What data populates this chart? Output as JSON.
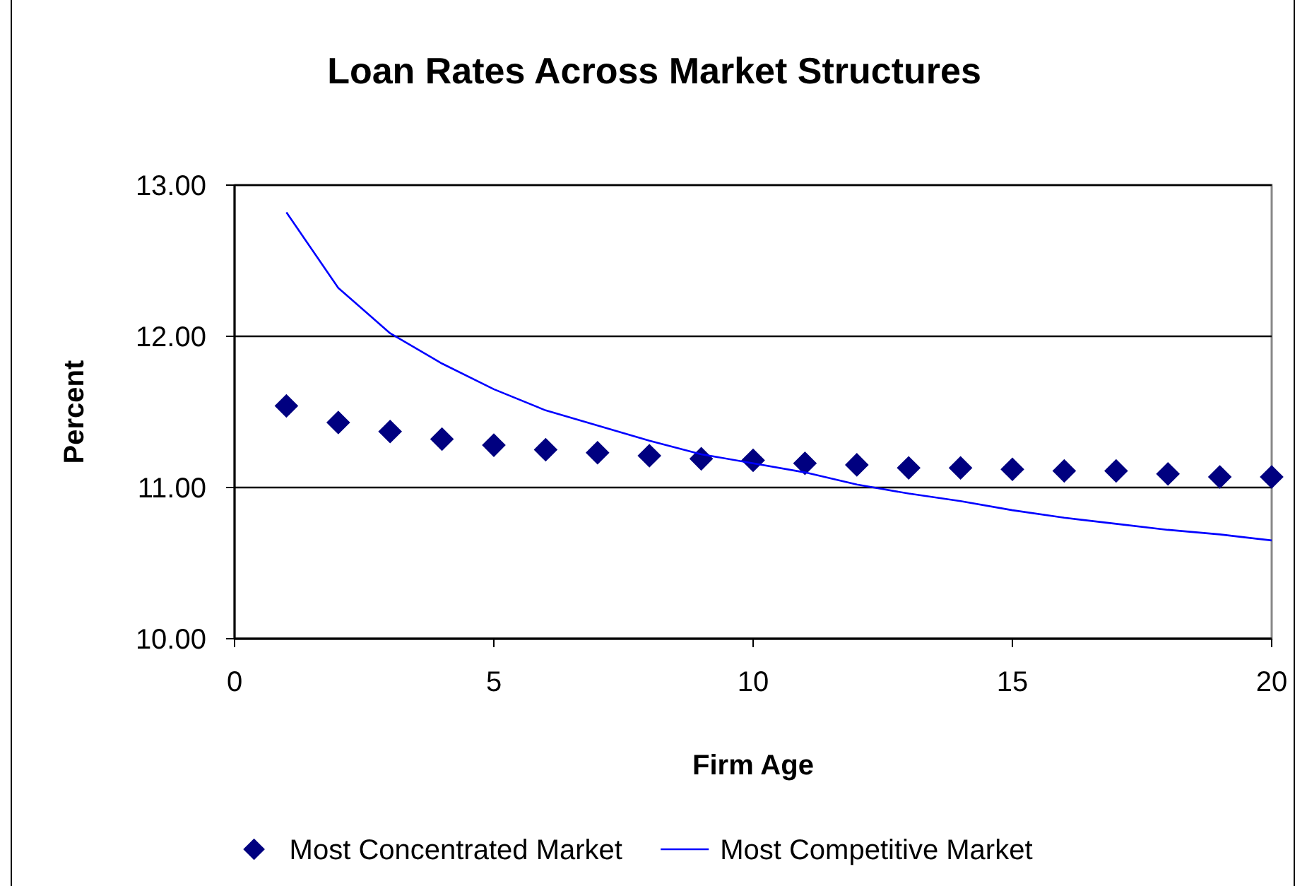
{
  "chart_data": {
    "type": "scatter",
    "title": "Loan Rates Across Market Structures",
    "xlabel": "Firm Age",
    "ylabel": "Percent",
    "x": [
      1,
      2,
      3,
      4,
      5,
      6,
      7,
      8,
      9,
      10,
      11,
      12,
      13,
      14,
      15,
      16,
      17,
      18,
      19,
      20
    ],
    "series": [
      {
        "name": "Most Concentrated Market",
        "marker": "diamond",
        "color": "#000080",
        "values": [
          11.54,
          11.43,
          11.37,
          11.32,
          11.28,
          11.25,
          11.23,
          11.21,
          11.19,
          11.18,
          11.16,
          11.15,
          11.13,
          11.13,
          11.12,
          11.11,
          11.11,
          11.09,
          11.07,
          11.07
        ]
      },
      {
        "name": "Most Competitive Market",
        "type": "line",
        "marker": "none",
        "color": "#0000ff",
        "values": [
          12.82,
          12.32,
          12.02,
          11.82,
          11.65,
          11.51,
          11.41,
          11.31,
          11.22,
          11.16,
          11.1,
          11.02,
          10.96,
          10.91,
          10.85,
          10.8,
          10.76,
          10.72,
          10.69,
          10.65
        ]
      }
    ],
    "xlim": [
      0,
      20
    ],
    "xticks": [
      0,
      5,
      10,
      15,
      20
    ],
    "ylim": [
      10,
      13
    ],
    "yticks": [
      {
        "value": 10,
        "label": "10.00"
      },
      {
        "value": 11,
        "label": "11.00"
      },
      {
        "value": 12,
        "label": "12.00"
      },
      {
        "value": 13,
        "label": "13.00"
      }
    ],
    "grid": "y",
    "legend": "bottom"
  }
}
